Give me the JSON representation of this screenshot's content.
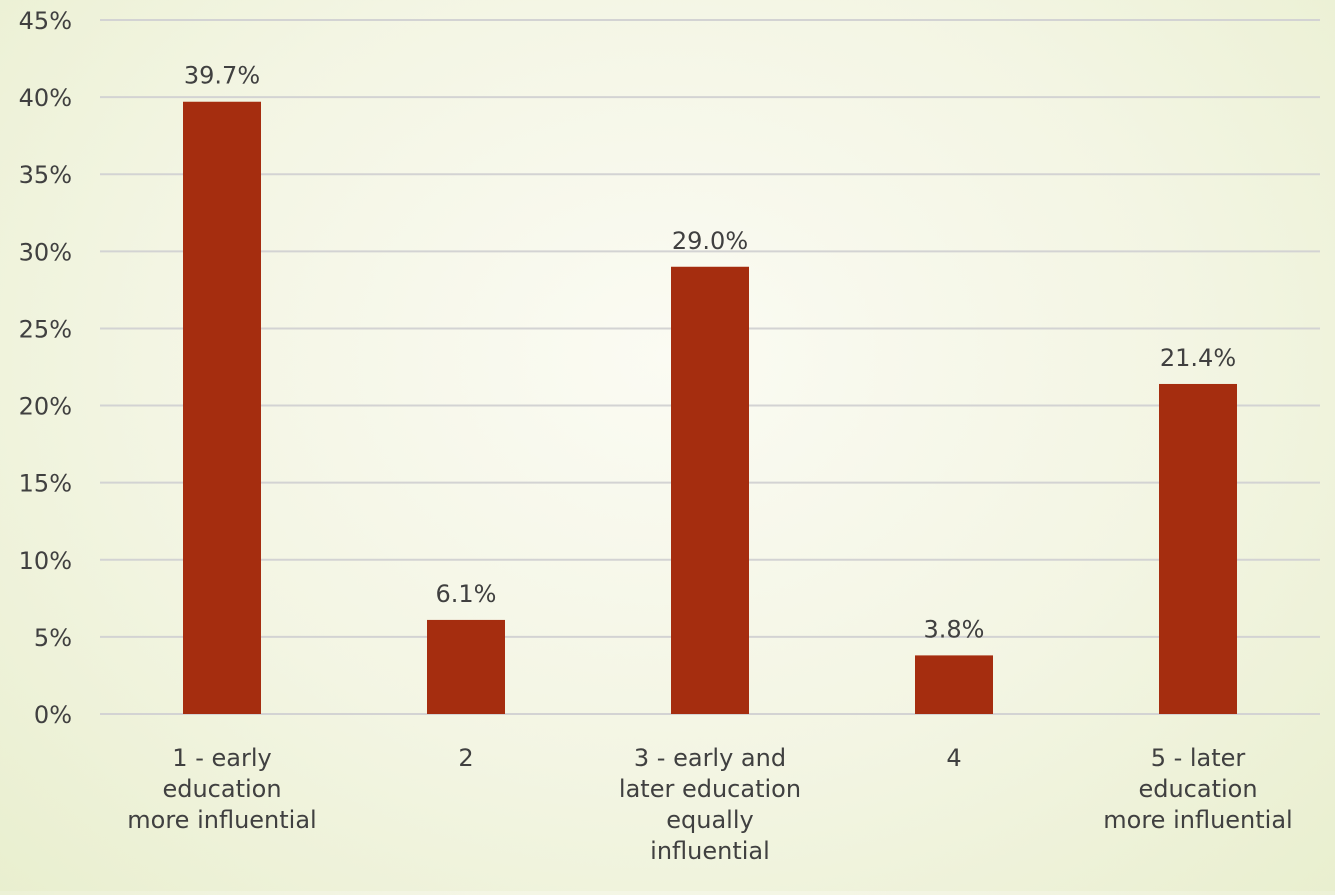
{
  "chart_data": {
    "type": "bar",
    "title": "",
    "xlabel": "",
    "ylabel": "",
    "categories": [
      [
        "1 - early",
        "education",
        "more influential"
      ],
      [
        "2"
      ],
      [
        "3 - early and",
        "later education",
        "equally",
        "influential"
      ],
      [
        "4"
      ],
      [
        "5 - later",
        "education",
        "more influential"
      ]
    ],
    "values": [
      39.7,
      6.1,
      29.0,
      3.8,
      21.4
    ],
    "data_labels": [
      "39.7%",
      "6.1%",
      "29.0%",
      "3.8%",
      "21.4%"
    ],
    "ylim": [
      0,
      45
    ],
    "yticks": [
      0,
      5,
      10,
      15,
      20,
      25,
      30,
      35,
      40,
      45
    ],
    "ytick_labels": [
      "0%",
      "5%",
      "10%",
      "15%",
      "20%",
      "25%",
      "30%",
      "35%",
      "40%",
      "45%"
    ],
    "grid": true,
    "legend": "none",
    "bar_color": "#a52d0f"
  }
}
